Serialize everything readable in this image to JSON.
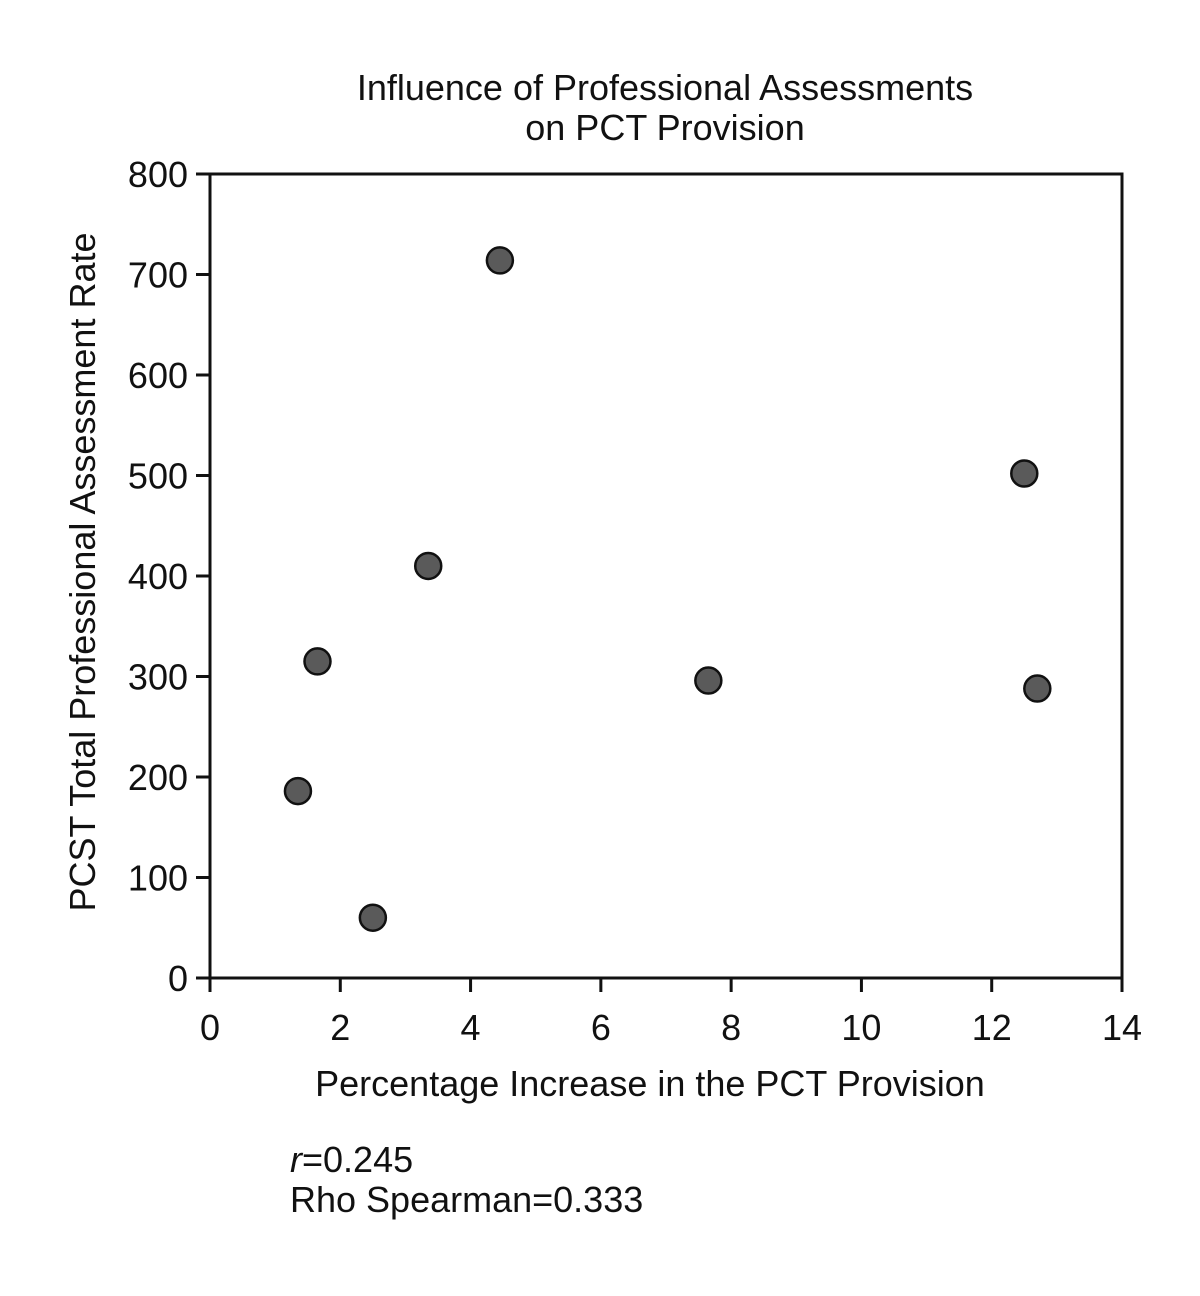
{
  "chart_data": {
    "type": "scatter",
    "title": "Influence of Professional Assessments on PCT Provision",
    "title_lines": [
      "Influence of Professional Assessments",
      "on PCT Provision"
    ],
    "xlabel": "Percentage Increase in the PCT Provision",
    "ylabel": "PCST Total Professional Assessment Rate",
    "xlim": [
      0,
      14
    ],
    "ylim": [
      0,
      800
    ],
    "xticks": [
      0,
      2,
      4,
      6,
      8,
      10,
      12,
      14
    ],
    "yticks": [
      0,
      100,
      200,
      300,
      400,
      500,
      600,
      700,
      800
    ],
    "grid": false,
    "marker_color": "#5a5a5a",
    "points": [
      {
        "x": 1.35,
        "y": 186
      },
      {
        "x": 1.65,
        "y": 315
      },
      {
        "x": 2.5,
        "y": 60
      },
      {
        "x": 3.35,
        "y": 410
      },
      {
        "x": 4.45,
        "y": 714
      },
      {
        "x": 7.65,
        "y": 296
      },
      {
        "x": 12.5,
        "y": 502
      },
      {
        "x": 12.7,
        "y": 288
      }
    ]
  },
  "stats": {
    "r_symbol": "r",
    "r_value": "=0.245",
    "rho_text": "Rho Spearman=0.333"
  }
}
